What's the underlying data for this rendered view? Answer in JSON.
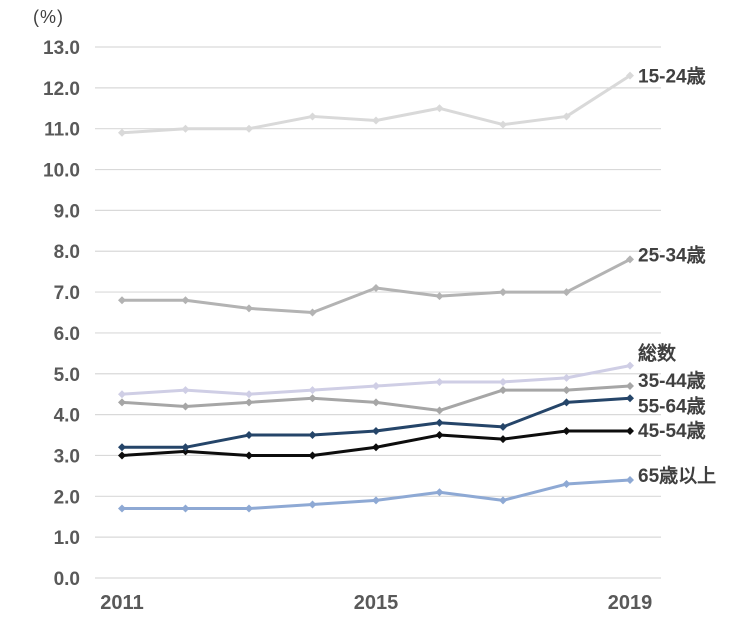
{
  "chart_data": {
    "type": "line",
    "title": "",
    "unit_label": "(%)",
    "xlabel": "",
    "ylabel": "",
    "x": [
      2011,
      2012,
      2013,
      2014,
      2015,
      2016,
      2017,
      2018,
      2019
    ],
    "xticks": [
      {
        "label": "2011",
        "index": 0
      },
      {
        "label": "2015",
        "index": 4
      },
      {
        "label": "2019",
        "index": 8
      }
    ],
    "ylim": [
      0.0,
      13.0
    ],
    "ytick_step": 1.0,
    "ytick_decimals": 1,
    "grid": "horizontal",
    "legend_position": "right-of-line-end",
    "marker": "diamond",
    "series": [
      {
        "id": "age-15-24",
        "name": "15-24歳",
        "color": "#d9d9d9",
        "values": [
          10.9,
          11.0,
          11.0,
          11.3,
          11.2,
          11.5,
          11.1,
          11.3,
          12.3
        ],
        "label_dy": 0
      },
      {
        "id": "age-25-34",
        "name": "25-34歳",
        "color": "#b3b3b3",
        "values": [
          6.8,
          6.8,
          6.6,
          6.5,
          7.1,
          6.9,
          7.0,
          7.0,
          7.8
        ],
        "label_dy": -5
      },
      {
        "id": "total",
        "name": "総数",
        "color": "#cfcee5",
        "values": [
          4.5,
          4.6,
          4.5,
          4.6,
          4.7,
          4.8,
          4.8,
          4.9,
          5.2
        ],
        "label_dy": -13
      },
      {
        "id": "age-35-44",
        "name": "35-44歳",
        "color": "#a6a6a6",
        "values": [
          4.3,
          4.2,
          4.3,
          4.4,
          4.3,
          4.1,
          4.6,
          4.6,
          4.7
        ],
        "label_dy": -6
      },
      {
        "id": "age-45-54",
        "name": "45-54歳",
        "color": "#0d0d0d",
        "values": [
          3.0,
          3.1,
          3.0,
          3.0,
          3.2,
          3.5,
          3.4,
          3.6,
          3.6
        ],
        "label_dy": -1
      },
      {
        "id": "age-55-64",
        "name": "55-64歳",
        "color": "#254569",
        "values": [
          3.2,
          3.2,
          3.5,
          3.5,
          3.6,
          3.8,
          3.7,
          4.3,
          4.4
        ],
        "label_dy": 7
      },
      {
        "id": "age-65-plus",
        "name": "65歳以上",
        "color": "#8ea9d4",
        "values": [
          1.7,
          1.7,
          1.7,
          1.8,
          1.9,
          2.1,
          1.9,
          2.3,
          2.4
        ],
        "label_dy": -5
      }
    ]
  }
}
